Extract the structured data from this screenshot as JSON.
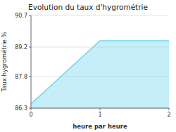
{
  "chart_data": {
    "type": "area",
    "title": "Evolution du taux d'hygrométrie",
    "xlabel": "heure par heure",
    "ylabel": "Taux hygrométrie %",
    "x": [
      0,
      1,
      2
    ],
    "values": [
      86.5,
      89.5,
      89.5
    ],
    "color": "#6dd5ed",
    "xlim": [
      0,
      2
    ],
    "ylim": [
      86.3,
      90.7
    ],
    "xticks": [
      0,
      1,
      2
    ],
    "yticks": [
      86.3,
      87.8,
      89.2,
      90.7
    ],
    "grid": true
  }
}
